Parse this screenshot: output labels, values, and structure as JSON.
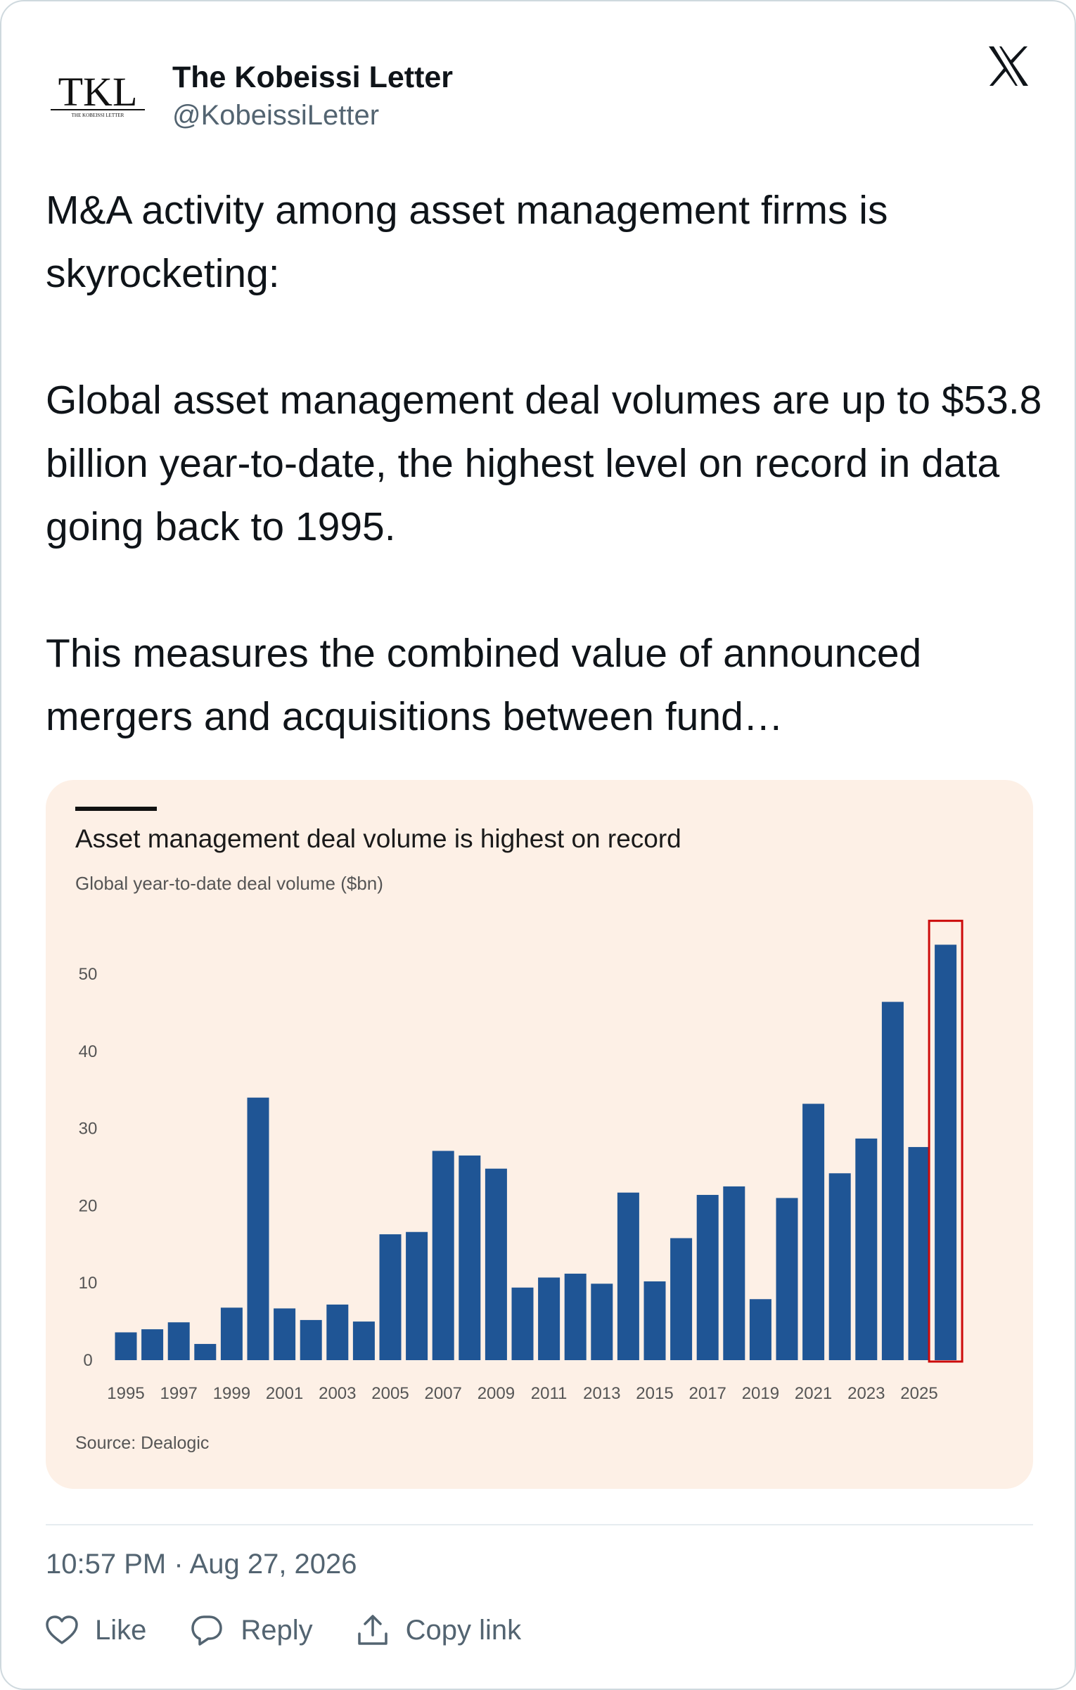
{
  "tweet": {
    "author_name": "The Kobeissi Letter",
    "author_handle": "@KobeissiLetter",
    "avatar_text": "TKL",
    "avatar_subtext": "THE KOBEISSI LETTER",
    "paragraphs": [
      "M&A activity among asset management firms is skyrocketing:",
      "Global asset management deal volumes are up to $53.8 billion year-to-date, the highest level on record in data going back to 1995.",
      "This measures the combined value of announced mergers and acquisitions between fund…"
    ],
    "timestamp": "10:57 PM · Aug 27, 2026",
    "actions": {
      "like": "Like",
      "reply": "Reply",
      "copy_link": "Copy link"
    }
  },
  "icons": {
    "logo": "x-logo-icon",
    "like": "heart-icon",
    "reply": "speech-bubble-icon",
    "copy": "share-upload-icon"
  },
  "colors": {
    "bar": "#1f5595",
    "highlight_box": "#cc0a0a",
    "chart_bg": "#fdf0e6",
    "muted_text": "#536471"
  },
  "chart_data": {
    "type": "bar",
    "title": "Asset management deal volume is highest on record",
    "subtitle": "Global year-to-date deal volume ($bn)",
    "source": "Source: Dealogic",
    "categories": [
      "1995",
      "1996",
      "1997",
      "1998",
      "1999",
      "2000",
      "2001",
      "2002",
      "2003",
      "2004",
      "2005",
      "2006",
      "2007",
      "2008",
      "2009",
      "2010",
      "2011",
      "2012",
      "2013",
      "2014",
      "2015",
      "2016",
      "2017",
      "2018",
      "2019",
      "2020",
      "2021",
      "2022",
      "2023",
      "2024",
      "2025",
      "2026"
    ],
    "x_tick_labels": [
      "1995",
      "1997",
      "1999",
      "2001",
      "2003",
      "2005",
      "2007",
      "2009",
      "2011",
      "2013",
      "2015",
      "2017",
      "2019",
      "2021",
      "2023",
      "2025"
    ],
    "values": [
      3.6,
      4.0,
      4.9,
      2.1,
      6.8,
      34.0,
      6.7,
      5.2,
      7.2,
      5.0,
      16.3,
      16.6,
      27.1,
      26.5,
      24.8,
      9.4,
      10.7,
      11.2,
      9.9,
      21.7,
      10.2,
      15.8,
      21.4,
      22.5,
      7.9,
      21.0,
      33.2,
      24.2,
      28.7,
      46.4,
      27.6,
      53.8
    ],
    "yticks": [
      0,
      10,
      20,
      30,
      40,
      50
    ],
    "ylim": [
      0,
      56
    ],
    "highlight_category": "2026",
    "grid": false,
    "legend": "none"
  }
}
